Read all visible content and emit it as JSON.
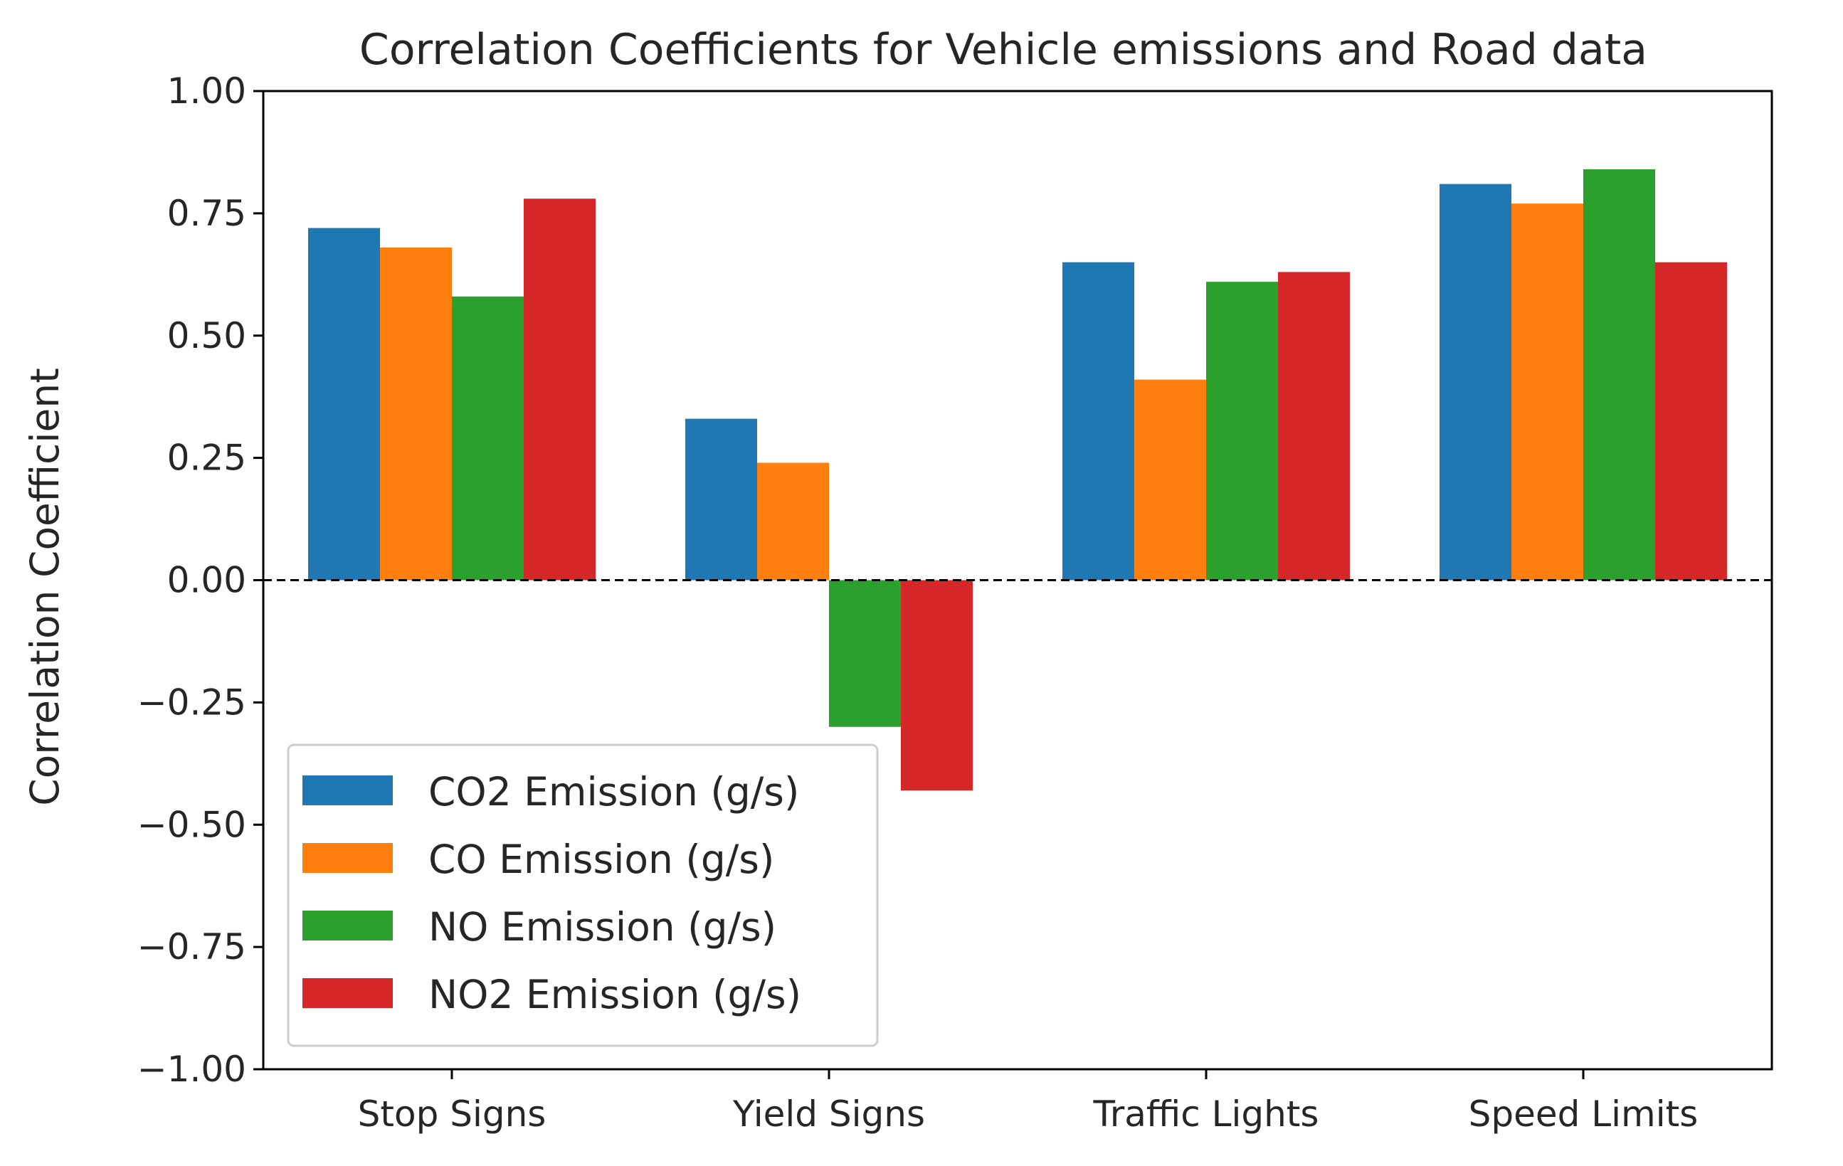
{
  "chart_data": {
    "type": "bar",
    "title": "Correlation Coefficients for Vehicle emissions and Road data",
    "xlabel": "",
    "ylabel": "Correlation Coefficient",
    "ylim": [
      -1.0,
      1.0
    ],
    "yticks": [
      "1.00",
      "0.75",
      "0.50",
      "0.25",
      "0.00",
      "−0.25",
      "−0.50",
      "−0.75",
      "−1.00"
    ],
    "ytick_values": [
      1.0,
      0.75,
      0.5,
      0.25,
      0.0,
      -0.25,
      -0.5,
      -0.75,
      -1.0
    ],
    "categories": [
      "Stop Signs",
      "Yield Signs",
      "Traffic Lights",
      "Speed Limits"
    ],
    "series": [
      {
        "name": "CO2 Emission (g/s)",
        "color": "#1f77b4",
        "values": [
          0.72,
          0.33,
          0.65,
          0.81
        ]
      },
      {
        "name": "CO Emission (g/s)",
        "color": "#ff7f0e",
        "values": [
          0.68,
          0.24,
          0.41,
          0.77
        ]
      },
      {
        "name": "NO Emission (g/s)",
        "color": "#2ca02c",
        "values": [
          0.58,
          -0.3,
          0.61,
          0.84
        ]
      },
      {
        "name": "NO2 Emission (g/s)",
        "color": "#d62728",
        "values": [
          0.78,
          -0.43,
          0.63,
          0.65
        ]
      }
    ],
    "zero_line": "dashed",
    "grid": false,
    "legend_position": "lower-left"
  }
}
